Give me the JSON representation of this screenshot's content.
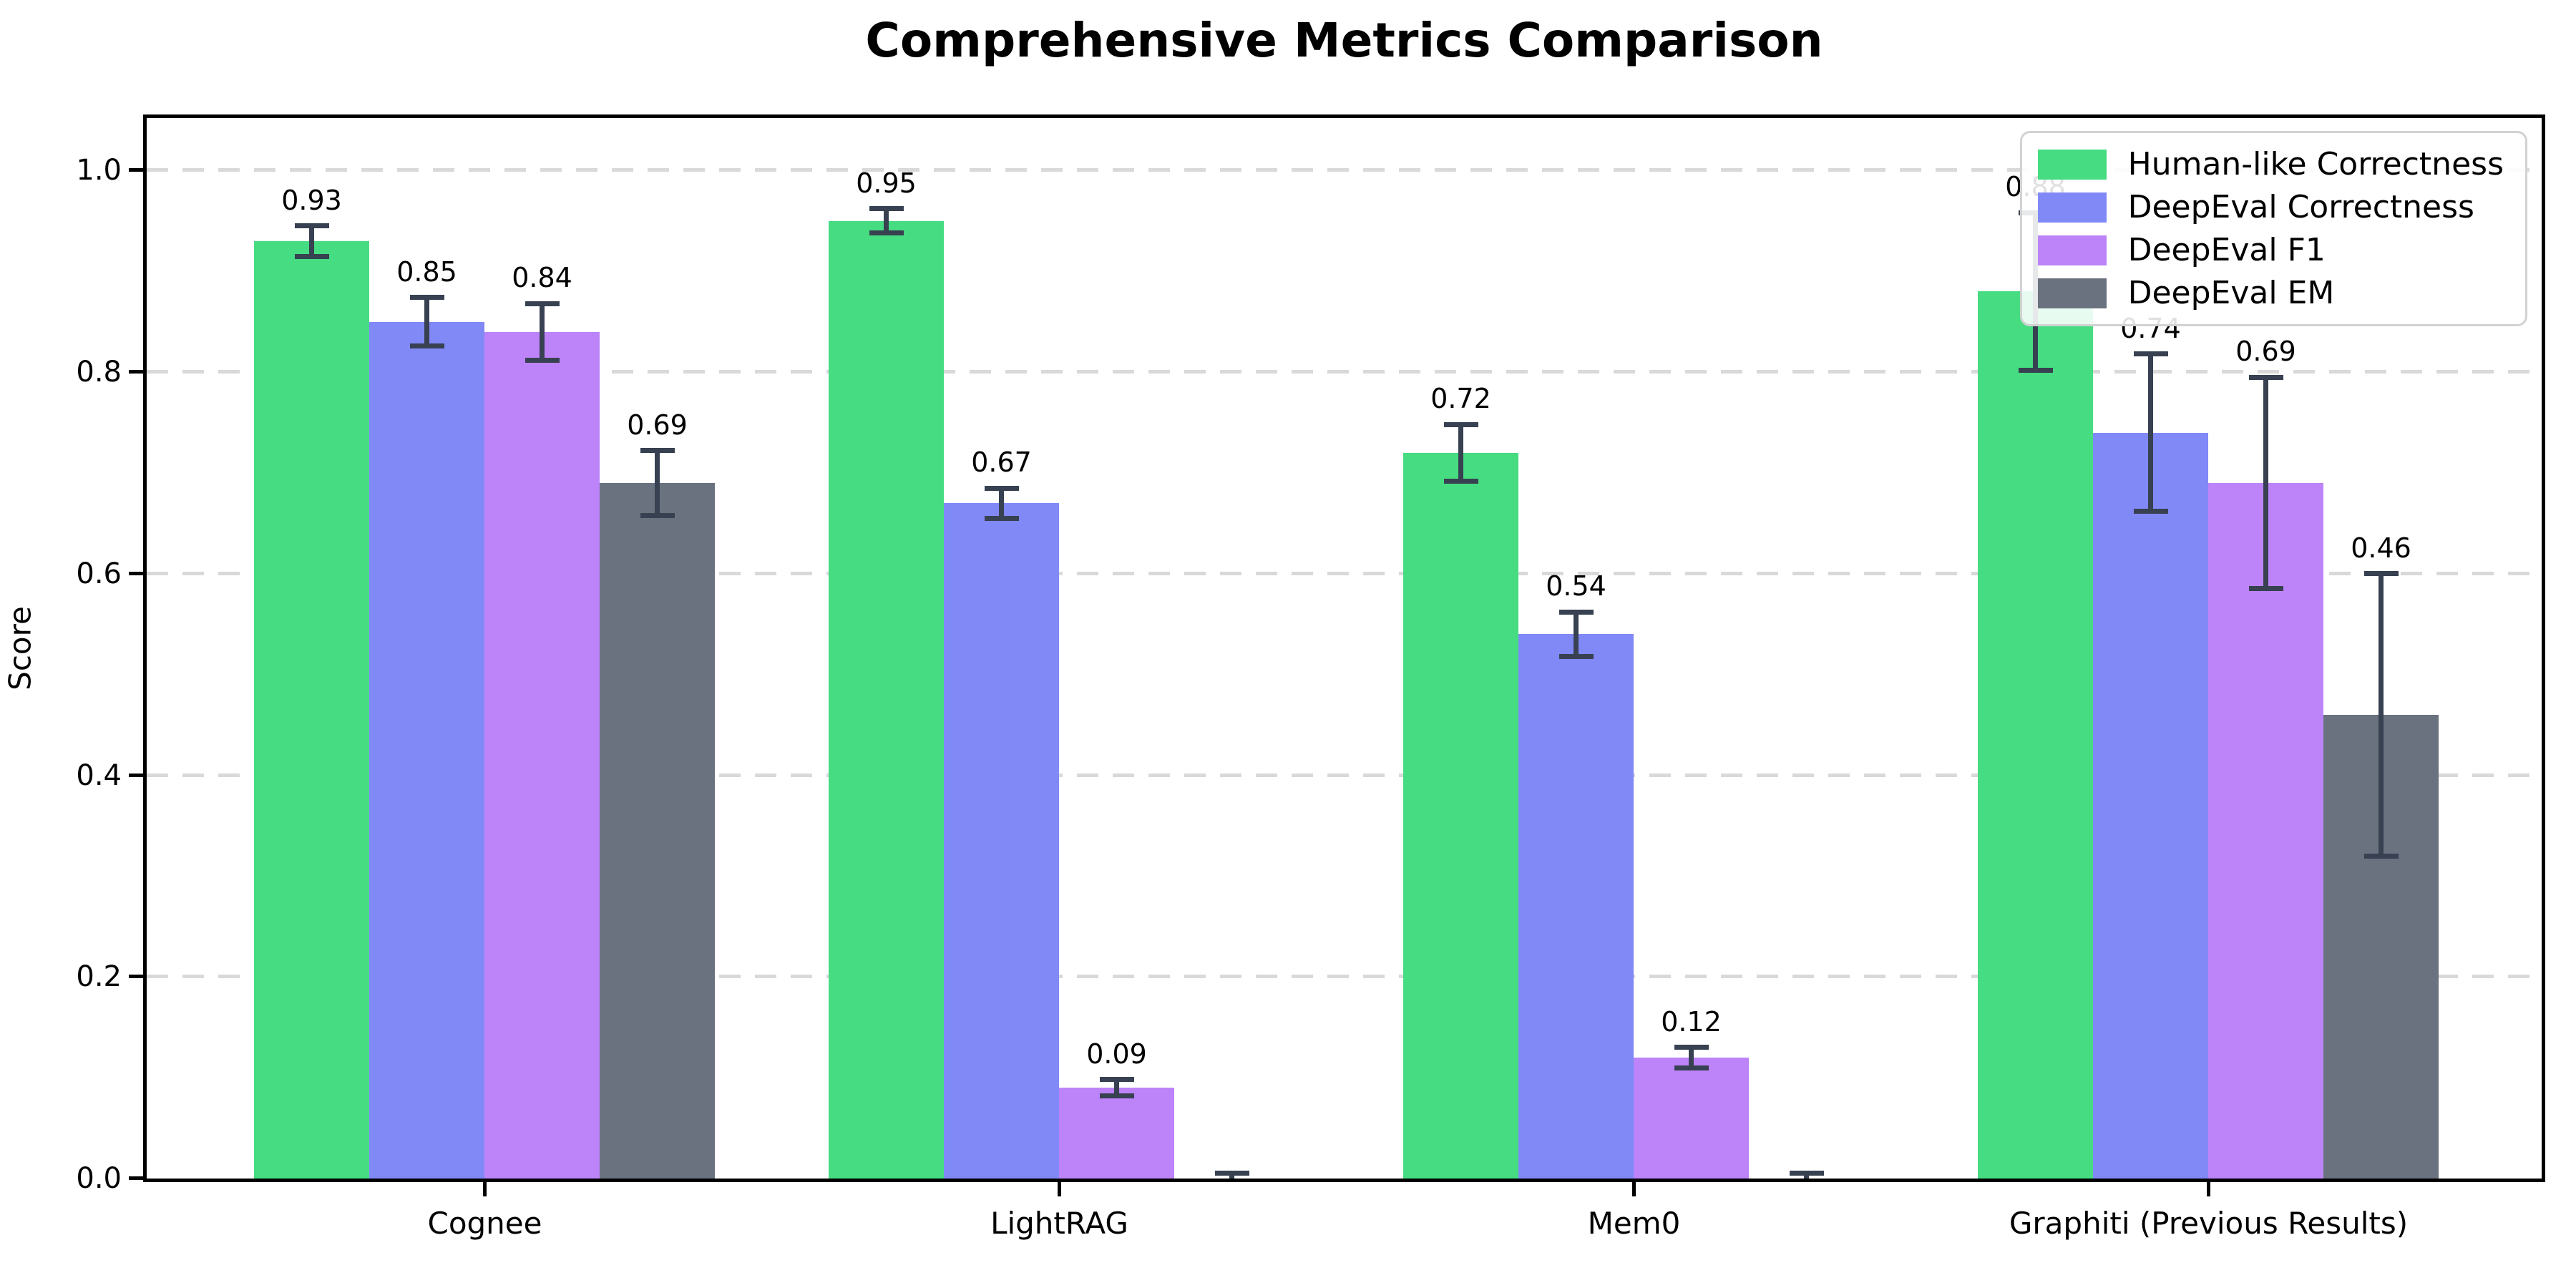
{
  "title": "Comprehensive Metrics Comparison",
  "ylabel": "Score",
  "chart_data": {
    "type": "bar",
    "title": "Comprehensive Metrics Comparison",
    "xlabel": "",
    "ylabel": "Score",
    "categories": [
      "Cognee",
      "LightRAG",
      "Mem0",
      "Graphiti (Previous Results)"
    ],
    "series": [
      {
        "name": "Human-like Correctness",
        "color": "#46dc82",
        "values": [
          0.93,
          0.95,
          0.72,
          0.88
        ],
        "errors": [
          0.015,
          0.012,
          0.028,
          0.078
        ]
      },
      {
        "name": "DeepEval Correctness",
        "color": "#8189f7",
        "values": [
          0.85,
          0.67,
          0.54,
          0.74
        ],
        "errors": [
          0.024,
          0.015,
          0.022,
          0.078
        ]
      },
      {
        "name": "DeepEval F1",
        "color": "#bd84f9",
        "values": [
          0.84,
          0.09,
          0.12,
          0.69
        ],
        "errors": [
          0.028,
          0.008,
          0.01,
          0.105
        ]
      },
      {
        "name": "DeepEval EM",
        "color": "#6a7280",
        "values": [
          0.69,
          0.0,
          0.0,
          0.46
        ],
        "errors": [
          0.032,
          0.005,
          0.005,
          0.14
        ]
      }
    ],
    "ylim": [
      0,
      1.052
    ],
    "yticks": [
      0.0,
      0.2,
      0.4,
      0.6,
      0.8,
      1.0
    ],
    "ytick_labels": [
      "0.0",
      "0.2",
      "0.4",
      "0.6",
      "0.8",
      "1.0"
    ],
    "grid": "horizontal dashed",
    "gridline_color": "#d9d9d9",
    "legend_position": "upper right",
    "bar_value_labels": "2-decimal, hidden for zero-height bars",
    "error_bar_color": "#374151"
  }
}
